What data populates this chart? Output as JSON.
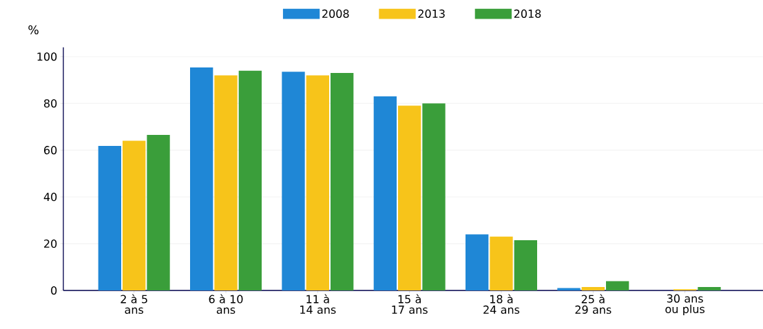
{
  "chart_data": {
    "type": "bar",
    "ylabel": "%",
    "categories": [
      "2 à 5 ans",
      "6 à 10 ans",
      "11 à 14 ans",
      "15 à 17 ans",
      "18 à 24 ans",
      "25 à 29 ans",
      "30 ans ou plus"
    ],
    "series": [
      {
        "name": "2008",
        "color": "#1f87d6",
        "values": [
          61.8,
          95.4,
          93.5,
          83,
          24,
          1,
          0
        ]
      },
      {
        "name": "2013",
        "color": "#f7c41a",
        "values": [
          64,
          92,
          92,
          79,
          23,
          1.5,
          0.5
        ]
      },
      {
        "name": "2018",
        "color": "#3a9e3a",
        "values": [
          66.5,
          94,
          93,
          80,
          21.5,
          4,
          1.5
        ]
      }
    ],
    "ylim": [
      0,
      104
    ],
    "yticks": [
      0,
      20,
      40,
      60,
      80,
      100
    ],
    "grid": "y",
    "legend": "top"
  }
}
